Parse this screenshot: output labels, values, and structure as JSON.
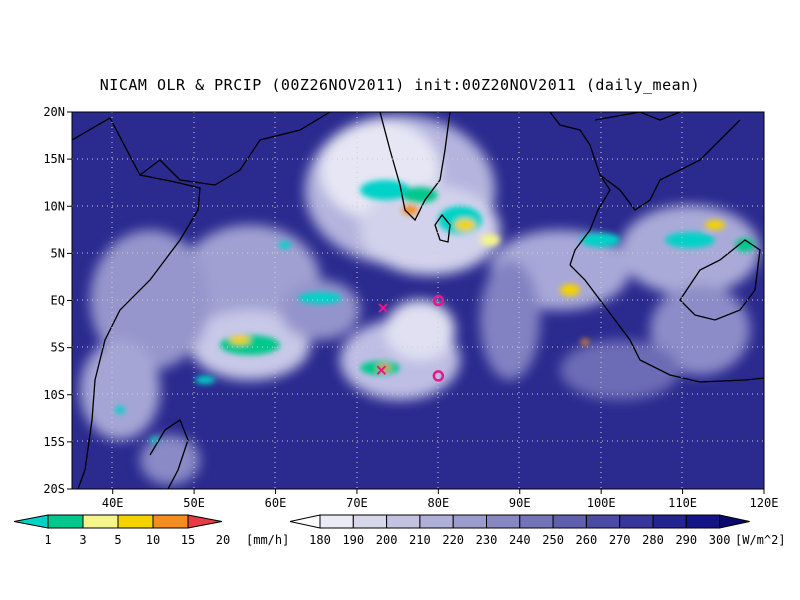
{
  "title": "NICAM OLR & PRCIP (00Z26NOV2011) init:00Z20NOV2011 (daily_mean)",
  "axes": {
    "x_ticks": [
      "40E",
      "50E",
      "60E",
      "70E",
      "80E",
      "90E",
      "100E",
      "110E",
      "120E"
    ],
    "y_ticks": [
      "20N",
      "15N",
      "10N",
      "5N",
      "EQ",
      "5S",
      "10S",
      "15S",
      "20S"
    ],
    "lon_range": [
      35,
      120
    ],
    "lat_range": [
      -20,
      20
    ],
    "grid": true
  },
  "precip_scale": {
    "labels": [
      "1",
      "3",
      "5",
      "10",
      "15",
      "20"
    ],
    "unit": "[mm/h]",
    "colors": [
      "#00d2c8",
      "#00c88c",
      "#f5f58c",
      "#f5d200",
      "#f58c1e",
      "#e63c46"
    ]
  },
  "olr_scale": {
    "labels": [
      "180",
      "190",
      "200",
      "210",
      "220",
      "230",
      "240",
      "250",
      "260",
      "270",
      "280",
      "290",
      "300"
    ],
    "unit": "[W/m^2]",
    "colors": [
      "#ffffff",
      "#ebebf5",
      "#d7d7eb",
      "#c3c3e1",
      "#afafd7",
      "#9b9bcd",
      "#8787c3",
      "#7373b9",
      "#5f5faf",
      "#4b4ba5",
      "#37379b",
      "#232391",
      "#141487",
      "#0a0a6e"
    ]
  },
  "markers": {
    "crosses": [
      {
        "lon": 73.2,
        "lat": -0.8
      },
      {
        "lon": 73.0,
        "lat": -7.4
      }
    ],
    "circles": [
      {
        "lon": 80.0,
        "lat": 0.0
      },
      {
        "lon": 80.0,
        "lat": -8.0
      }
    ],
    "color": "#e6198c"
  }
}
